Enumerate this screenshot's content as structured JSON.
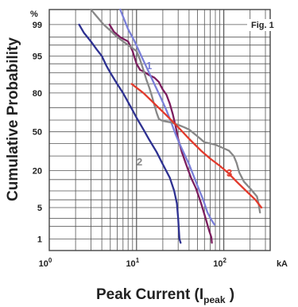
{
  "chart_data": {
    "type": "line",
    "title": "",
    "figure_label": "Fig. 1",
    "xlabel_prefix": "Peak Current (I",
    "xlabel_sub": "peak",
    "xlabel_suffix": " )",
    "ylabel": "Cumulative Probability",
    "y_unit": "%",
    "x_unit": "kA",
    "x_scale": "log",
    "y_scale": "probability",
    "xlim": [
      1,
      340
    ],
    "ylim": [
      0.5,
      99.6
    ],
    "grid": true,
    "x_ticks": [
      {
        "value": 1,
        "base": "10",
        "exp": "0"
      },
      {
        "value": 10,
        "base": "10",
        "exp": "1"
      },
      {
        "value": 100,
        "base": "10",
        "exp": "2"
      }
    ],
    "y_tick_labels": [
      "1",
      "5",
      "20",
      "50",
      "80",
      "95",
      "99"
    ],
    "colors": {
      "grid": "#555555",
      "navy": "#2e3191",
      "maroon": "#7b1d5e",
      "lavender": "#7a7fd8",
      "gray": "#888888",
      "red": "#e23a2c"
    },
    "series": [
      {
        "name": "",
        "color": "#2e3191",
        "points": [
          [
            2.2,
            99
          ],
          [
            2.5,
            98.4
          ],
          [
            3,
            97.5
          ],
          [
            3.5,
            96.3
          ],
          [
            4,
            95
          ],
          [
            4.5,
            92.5
          ],
          [
            5,
            90
          ],
          [
            6,
            85
          ],
          [
            7,
            80
          ],
          [
            8,
            74
          ],
          [
            9,
            68
          ],
          [
            10,
            62
          ],
          [
            12,
            52
          ],
          [
            14,
            43
          ],
          [
            17,
            33
          ],
          [
            20,
            24
          ],
          [
            24,
            16
          ],
          [
            27,
            10
          ],
          [
            29,
            6
          ],
          [
            30,
            3
          ],
          [
            31,
            1
          ],
          [
            32,
            0.8
          ]
        ]
      },
      {
        "name": "",
        "color": "#7b1d5e",
        "points": [
          [
            4.9,
            99
          ],
          [
            5.5,
            98.5
          ],
          [
            6.5,
            98
          ],
          [
            8,
            97.5
          ],
          [
            9,
            96
          ],
          [
            10,
            93
          ],
          [
            11,
            91
          ],
          [
            12,
            90.5
          ],
          [
            14,
            89
          ],
          [
            16,
            88
          ],
          [
            18,
            86
          ],
          [
            19,
            84
          ],
          [
            20,
            82
          ],
          [
            21,
            80.5
          ],
          [
            22,
            79
          ],
          [
            24,
            73
          ],
          [
            26,
            65
          ],
          [
            28,
            55
          ],
          [
            30,
            44
          ],
          [
            33,
            33
          ],
          [
            37,
            24
          ],
          [
            42,
            16
          ],
          [
            48,
            11
          ],
          [
            55,
            6
          ],
          [
            62,
            3
          ],
          [
            68,
            1.6
          ],
          [
            72,
            1.1
          ],
          [
            73,
            0.8
          ]
        ]
      },
      {
        "name": "1",
        "color": "#7a7fd8",
        "points": [
          [
            6.5,
            99.6
          ],
          [
            8,
            98.7
          ],
          [
            9.5,
            97.5
          ],
          [
            11,
            95.5
          ],
          [
            13,
            92
          ],
          [
            16,
            85
          ],
          [
            19,
            77
          ],
          [
            22,
            68
          ],
          [
            25,
            58
          ],
          [
            28,
            48
          ],
          [
            31,
            40
          ],
          [
            35,
            32
          ],
          [
            40,
            24
          ],
          [
            45,
            17
          ],
          [
            50,
            12
          ],
          [
            58,
            7
          ],
          [
            65,
            4
          ],
          [
            72,
            2.8
          ],
          [
            78,
            2.2
          ]
        ]
      },
      {
        "name": "2",
        "color": "#888888",
        "points": [
          [
            3,
            99.6
          ],
          [
            4.2,
            99
          ],
          [
            5,
            98.6
          ],
          [
            6,
            98
          ],
          [
            7,
            97.5
          ],
          [
            8,
            97
          ],
          [
            9,
            96.5
          ],
          [
            10,
            96
          ],
          [
            11,
            94
          ],
          [
            12,
            91
          ],
          [
            13,
            87
          ],
          [
            14,
            83
          ],
          [
            15,
            78
          ],
          [
            16,
            72
          ],
          [
            17,
            66
          ],
          [
            18,
            61
          ],
          [
            19,
            60
          ],
          [
            21,
            59
          ],
          [
            25,
            58
          ],
          [
            30,
            56
          ],
          [
            35,
            54
          ],
          [
            40,
            52
          ],
          [
            50,
            46
          ],
          [
            60,
            41
          ],
          [
            80,
            39
          ],
          [
            100,
            36
          ],
          [
            115,
            34
          ],
          [
            130,
            30
          ],
          [
            140,
            25
          ],
          [
            150,
            19
          ],
          [
            170,
            14
          ],
          [
            200,
            11
          ],
          [
            240,
            8
          ],
          [
            250,
            6
          ],
          [
            260,
            4
          ]
        ]
      },
      {
        "name": "3",
        "color": "#e23a2c",
        "points": [
          [
            8.8,
            85
          ],
          [
            12,
            80
          ],
          [
            16,
            73
          ],
          [
            22,
            64
          ],
          [
            30,
            54
          ],
          [
            40,
            44
          ],
          [
            55,
            34
          ],
          [
            70,
            28
          ],
          [
            90,
            23
          ],
          [
            110,
            19
          ],
          [
            140,
            14
          ],
          [
            180,
            10
          ],
          [
            230,
            7
          ],
          [
            270,
            5
          ]
        ]
      }
    ]
  }
}
